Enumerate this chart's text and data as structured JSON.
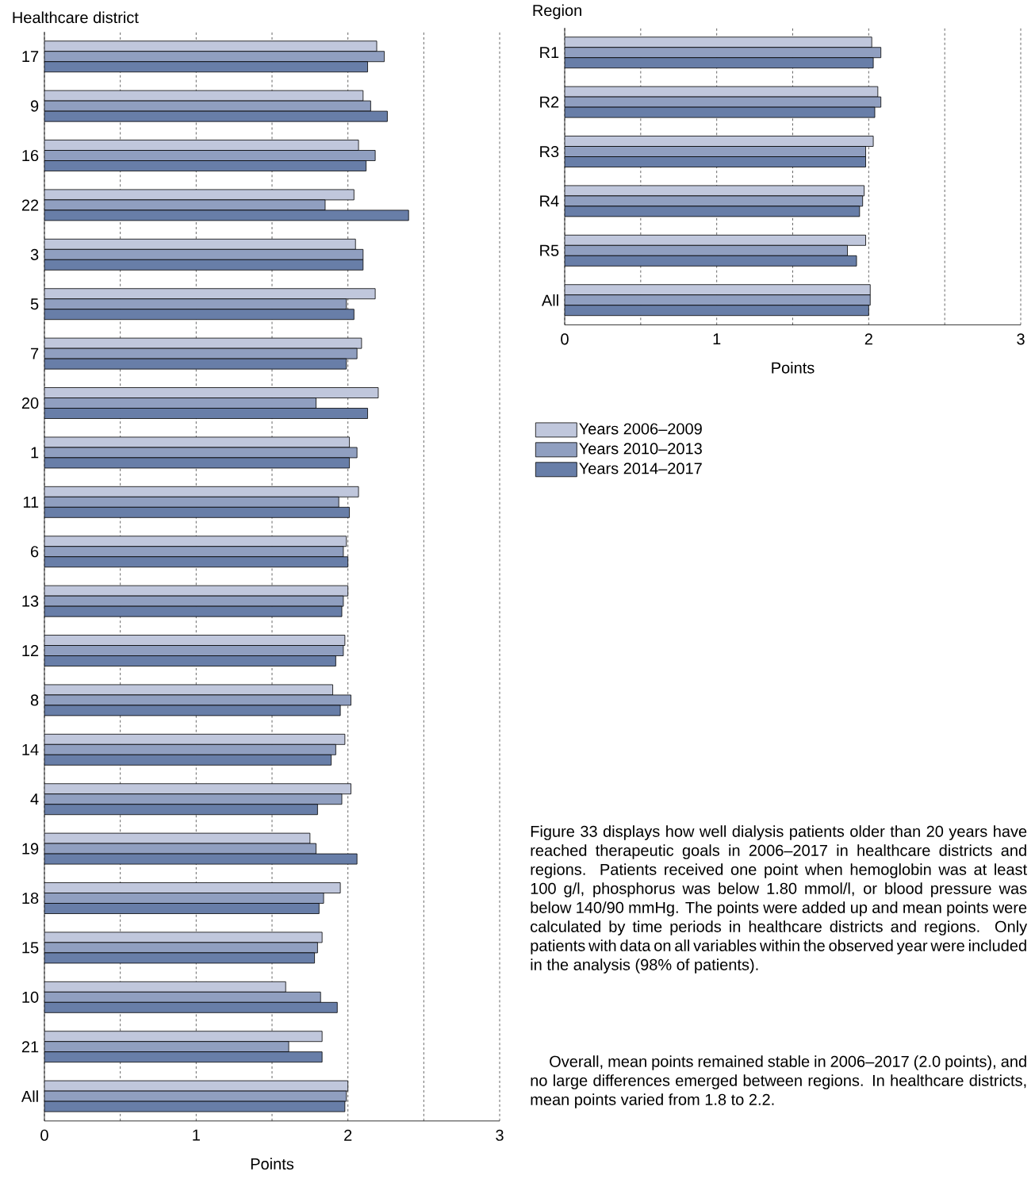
{
  "chart_data": [
    {
      "type": "bar",
      "orientation": "horizontal",
      "ylabel": "Healthcare district",
      "xlabel": "Points",
      "categories": [
        "17",
        "9",
        "16",
        "22",
        "3",
        "5",
        "7",
        "20",
        "1",
        "11",
        "6",
        "13",
        "12",
        "8",
        "14",
        "4",
        "19",
        "18",
        "15",
        "10",
        "21",
        "All"
      ],
      "series": [
        {
          "color": "#c0c7dc",
          "values": [
            2.19,
            2.1,
            2.07,
            2.04,
            2.05,
            2.18,
            2.09,
            2.2,
            2.01,
            2.07,
            1.99,
            2.0,
            1.98,
            1.9,
            1.98,
            2.02,
            1.75,
            1.95,
            1.83,
            1.59,
            1.83,
            2.0
          ]
        },
        {
          "color": "#909fc0",
          "values": [
            2.24,
            2.15,
            2.18,
            1.85,
            2.1,
            1.99,
            2.06,
            1.79,
            2.06,
            1.94,
            1.97,
            1.97,
            1.97,
            2.02,
            1.92,
            1.96,
            1.79,
            1.84,
            1.8,
            1.82,
            1.61,
            1.99
          ]
        },
        {
          "color": "#687ea8",
          "values": [
            2.13,
            2.26,
            2.12,
            2.4,
            2.1,
            2.04,
            1.99,
            2.13,
            2.01,
            2.01,
            2.0,
            1.96,
            1.92,
            1.95,
            1.89,
            1.8,
            2.06,
            1.81,
            1.78,
            1.93,
            1.83,
            1.98
          ]
        }
      ],
      "xlim": [
        0,
        3
      ],
      "xticks": [
        0,
        {
          "value": 0.5,
          "label": null
        },
        1,
        {
          "value": 1.5,
          "label": null
        },
        2,
        {
          "value": 2.5,
          "label": null
        },
        3
      ],
      "grid": "x"
    },
    {
      "type": "bar",
      "orientation": "horizontal",
      "ylabel": "Region",
      "xlabel": "Points",
      "categories": [
        "R1",
        "R2",
        "R3",
        "R4",
        "R5",
        "All"
      ],
      "series": [
        {
          "name": "Years 2006–2009",
          "color": "#c0c7dc",
          "values": [
            2.02,
            2.06,
            2.03,
            1.97,
            1.98,
            2.01
          ]
        },
        {
          "name": "Years 2010–2013",
          "color": "#909fc0",
          "values": [
            2.08,
            2.08,
            1.98,
            1.96,
            1.86,
            2.01
          ]
        },
        {
          "name": "Years 2014–2017",
          "color": "#687ea8",
          "values": [
            2.03,
            2.04,
            1.98,
            1.94,
            1.92,
            2.0
          ]
        }
      ],
      "xlim": [
        0,
        3
      ],
      "xticks": [
        0,
        {
          "value": 0.5,
          "label": null
        },
        1,
        {
          "value": 1.5,
          "label": null
        },
        2,
        {
          "value": 2.5,
          "label": null
        },
        3
      ],
      "grid": "x",
      "legend": "bottom",
      "annotations": [
        "Figure 33 displays how well dialysis patients older than 20 years have reached therapeutic goals in 2006–2017 in healthcare districts and regions. Patients received one point when hemoglobin was at least 100 g/l, phosphorus was below 1.80 mmol/l, or blood pressure was below 140/90 mmHg. The points were added up and mean points were calculated by time periods in healthcare districts and regions. Only patients with data on all variables within the observed year were included in the analysis (98% of patients).",
        "Overall, mean points remained stable in 2006–2017 (2.0 points), and no large differences emerged between regions. In healthcare districts, mean points varied from 1.8 to 2.2."
      ]
    }
  ]
}
